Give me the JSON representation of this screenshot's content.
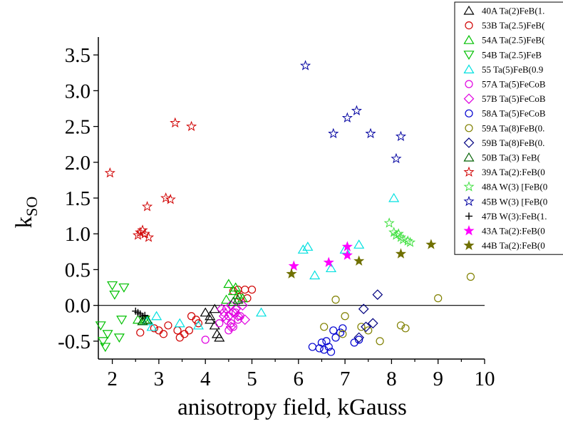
{
  "chart_data": {
    "type": "scatter",
    "xlabel": "anisotropy field, kGauss",
    "ylabel_main": "k",
    "ylabel_sub": "SO",
    "xlim": [
      1.7,
      10.0
    ],
    "ylim": [
      -0.75,
      3.75
    ],
    "x_ticks": [
      "2",
      "3",
      "4",
      "5",
      "6",
      "7",
      "8",
      "9",
      "10"
    ],
    "y_ticks": [
      "-0.5",
      "0.0",
      "0.5",
      "1.0",
      "1.5",
      "2.0",
      "2.5",
      "3.0",
      "3.5"
    ],
    "zero_line": true,
    "grid": false,
    "legend_position": "top-right",
    "series": [
      {
        "name": "40A Ta(2)FeB(1.",
        "marker": "triangle",
        "color": "#000000",
        "filled": false,
        "points": [
          [
            4.0,
            -0.1
          ],
          [
            4.1,
            -0.2
          ],
          [
            4.2,
            -0.28
          ],
          [
            4.25,
            -0.4
          ],
          [
            4.3,
            -0.45
          ],
          [
            4.1,
            -0.15
          ],
          [
            4.2,
            -0.05
          ]
        ]
      },
      {
        "name": "53B Ta(2.5)FeB(",
        "marker": "circle",
        "color": "#d00000",
        "filled": false,
        "points": [
          [
            2.6,
            -0.38
          ],
          [
            2.9,
            -0.32
          ],
          [
            3.0,
            -0.35
          ],
          [
            3.1,
            -0.4
          ],
          [
            3.2,
            -0.28
          ],
          [
            3.4,
            -0.35
          ],
          [
            3.45,
            -0.45
          ],
          [
            3.55,
            -0.4
          ],
          [
            3.65,
            -0.35
          ],
          [
            3.7,
            -0.15
          ],
          [
            3.8,
            -0.2
          ],
          [
            3.85,
            -0.25
          ],
          [
            4.7,
            0.22
          ],
          [
            4.85,
            0.22
          ],
          [
            5.0,
            0.22
          ],
          [
            4.9,
            0.1
          ],
          [
            4.75,
            0.12
          ],
          [
            4.6,
            0.2
          ]
        ]
      },
      {
        "name": "54A Ta(2.5)FeB(",
        "marker": "triangle",
        "color": "#00c000",
        "filled": false,
        "points": [
          [
            2.55,
            -0.2
          ],
          [
            2.65,
            -0.22
          ],
          [
            2.7,
            -0.2
          ],
          [
            4.5,
            0.3
          ],
          [
            4.6,
            0.2
          ],
          [
            4.7,
            0.15
          ],
          [
            4.8,
            0.1
          ],
          [
            4.45,
            0.08
          ],
          [
            4.65,
            0.25
          ]
        ]
      },
      {
        "name": "54B Ta(2.5)FeB",
        "marker": "triangle-down",
        "color": "#00c000",
        "filled": false,
        "points": [
          [
            1.75,
            -0.28
          ],
          [
            1.8,
            -0.5
          ],
          [
            1.85,
            -0.58
          ],
          [
            1.9,
            -0.4
          ],
          [
            2.0,
            0.28
          ],
          [
            2.05,
            0.15
          ],
          [
            2.15,
            -0.45
          ],
          [
            2.2,
            -0.2
          ],
          [
            2.25,
            0.25
          ],
          [
            2.7,
            -0.2
          ]
        ]
      },
      {
        "name": "55 Ta(5)FeB(0.9",
        "marker": "triangle",
        "color": "#00e0e0",
        "filled": false,
        "points": [
          [
            2.75,
            -0.22
          ],
          [
            2.85,
            -0.3
          ],
          [
            2.95,
            -0.15
          ],
          [
            3.45,
            -0.25
          ],
          [
            3.85,
            -0.28
          ],
          [
            5.2,
            -0.1
          ],
          [
            6.1,
            0.78
          ],
          [
            6.2,
            0.82
          ],
          [
            6.35,
            0.42
          ],
          [
            6.7,
            0.52
          ],
          [
            7.0,
            0.78
          ],
          [
            7.3,
            0.85
          ],
          [
            8.05,
            1.5
          ]
        ]
      },
      {
        "name": "57A Ta(5)FeCoB",
        "marker": "circle",
        "color": "#e000e0",
        "filled": false,
        "points": [
          [
            4.0,
            -0.48
          ],
          [
            4.3,
            -0.25
          ],
          [
            4.4,
            -0.1
          ],
          [
            4.5,
            -0.15
          ],
          [
            4.55,
            -0.25
          ],
          [
            4.6,
            -0.3
          ],
          [
            4.7,
            -0.2
          ],
          [
            4.65,
            -0.1
          ],
          [
            4.45,
            -0.05
          ],
          [
            4.75,
            -0.15
          ],
          [
            4.5,
            -0.35
          ]
        ]
      },
      {
        "name": "57B Ta(5)FeCoB",
        "marker": "diamond",
        "color": "#e000e0",
        "filled": false,
        "points": [
          [
            4.35,
            -0.05
          ],
          [
            4.45,
            -0.2
          ],
          [
            4.55,
            0.0
          ],
          [
            4.6,
            -0.1
          ],
          [
            4.65,
            -0.05
          ],
          [
            4.7,
            -0.15
          ],
          [
            4.8,
            0.0
          ],
          [
            4.85,
            -0.2
          ],
          [
            4.55,
            -0.3
          ],
          [
            4.4,
            -0.15
          ]
        ]
      },
      {
        "name": "58A Ta(5)FeCoB",
        "marker": "circle",
        "color": "#0000d0",
        "filled": false,
        "points": [
          [
            6.3,
            -0.58
          ],
          [
            6.45,
            -0.6
          ],
          [
            6.5,
            -0.52
          ],
          [
            6.55,
            -0.62
          ],
          [
            6.6,
            -0.5
          ],
          [
            6.65,
            -0.58
          ],
          [
            6.7,
            -0.65
          ],
          [
            6.75,
            -0.35
          ],
          [
            6.8,
            -0.45
          ],
          [
            6.9,
            -0.38
          ],
          [
            6.95,
            -0.32
          ],
          [
            7.2,
            -0.52
          ],
          [
            7.3,
            -0.48
          ]
        ]
      },
      {
        "name": "59A Ta(8)FeB(0.",
        "marker": "circle",
        "color": "#808000",
        "filled": false,
        "points": [
          [
            6.55,
            -0.3
          ],
          [
            6.8,
            0.08
          ],
          [
            6.95,
            -0.4
          ],
          [
            7.0,
            -0.15
          ],
          [
            7.35,
            -0.3
          ],
          [
            7.5,
            -0.35
          ],
          [
            7.75,
            -0.5
          ],
          [
            8.2,
            -0.28
          ],
          [
            8.3,
            -0.32
          ],
          [
            9.0,
            0.1
          ],
          [
            9.7,
            0.4
          ]
        ]
      },
      {
        "name": "59B Ta(8)FeB(0.",
        "marker": "diamond",
        "color": "#000080",
        "filled": false,
        "points": [
          [
            7.4,
            -0.05
          ],
          [
            7.3,
            -0.45
          ],
          [
            7.45,
            -0.3
          ],
          [
            7.6,
            -0.25
          ],
          [
            7.7,
            0.15
          ]
        ]
      },
      {
        "name": "50B  Ta(3) FeB(",
        "marker": "triangle",
        "color": "#006000",
        "filled": false,
        "points": [
          [
            2.65,
            -0.22
          ],
          [
            2.75,
            -0.2
          ],
          [
            4.6,
            0.05
          ],
          [
            4.7,
            0.08
          ]
        ]
      },
      {
        "name": "39A Ta(2):FeB(0",
        "marker": "star",
        "color": "#d00000",
        "filled": false,
        "points": [
          [
            1.95,
            1.85
          ],
          [
            2.55,
            0.98
          ],
          [
            2.6,
            1.02
          ],
          [
            2.7,
            1.0
          ],
          [
            2.78,
            0.95
          ],
          [
            2.65,
            1.05
          ],
          [
            2.75,
            1.38
          ],
          [
            3.15,
            1.5
          ],
          [
            3.25,
            1.48
          ],
          [
            3.35,
            2.55
          ],
          [
            3.7,
            2.5
          ]
        ]
      },
      {
        "name": "48A W(3) [FeB(0",
        "marker": "star",
        "color": "#40e040",
        "filled": false,
        "points": [
          [
            7.95,
            1.15
          ],
          [
            8.05,
            1.02
          ],
          [
            8.15,
            1.0
          ],
          [
            8.2,
            0.95
          ],
          [
            8.25,
            0.92
          ],
          [
            8.35,
            0.9
          ],
          [
            8.4,
            0.88
          ],
          [
            8.1,
            0.98
          ]
        ]
      },
      {
        "name": "45B W(3) [FeB(0",
        "marker": "star",
        "color": "#0000a0",
        "filled": false,
        "points": [
          [
            6.15,
            3.35
          ],
          [
            6.75,
            2.4
          ],
          [
            7.05,
            2.62
          ],
          [
            7.25,
            2.72
          ],
          [
            7.55,
            2.4
          ],
          [
            8.1,
            2.05
          ],
          [
            8.2,
            2.36
          ]
        ]
      },
      {
        "name": "47B W(3):FeB(1.",
        "marker": "plus",
        "color": "#000000",
        "filled": false,
        "points": [
          [
            2.5,
            -0.08
          ],
          [
            2.55,
            -0.1
          ],
          [
            2.6,
            -0.12
          ],
          [
            2.65,
            -0.15
          ],
          [
            2.7,
            -0.14
          ]
        ]
      },
      {
        "name": "43A Ta(2):FeB(0",
        "marker": "star",
        "color": "#ff00ff",
        "filled": true,
        "points": [
          [
            5.9,
            0.55
          ],
          [
            6.65,
            0.6
          ],
          [
            7.05,
            0.7
          ],
          [
            7.05,
            0.82
          ]
        ]
      },
      {
        "name": "44B Ta(2):FeB(0",
        "marker": "star",
        "color": "#707000",
        "filled": true,
        "points": [
          [
            5.85,
            0.44
          ],
          [
            7.3,
            0.62
          ],
          [
            8.2,
            0.72
          ],
          [
            8.85,
            0.85
          ]
        ]
      }
    ]
  }
}
